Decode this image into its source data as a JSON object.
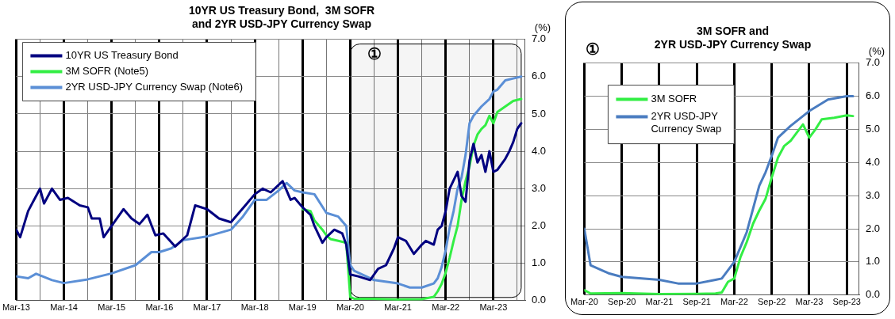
{
  "chart_data": [
    {
      "type": "line",
      "title": "10YR US Treasury Bond,  3M SOFR\nand 2YR USD-JPY Currency Swap",
      "ylabel": "(%)",
      "legend": "top left",
      "grid": true,
      "marker": "none",
      "line_style": "solid",
      "xlim": [
        "2013-03",
        "2023-11"
      ],
      "ylim": [
        0,
        7
      ],
      "xticks": [
        {
          "value": "2013-03",
          "label": "Mar-13"
        },
        {
          "value": "2013-09",
          "label": null
        },
        {
          "value": "2014-03",
          "label": "Mar-14"
        },
        {
          "value": "2014-09",
          "label": null
        },
        {
          "value": "2015-03",
          "label": "Mar-15"
        },
        {
          "value": "2015-09",
          "label": null
        },
        {
          "value": "2016-03",
          "label": "Mar-16"
        },
        {
          "value": "2016-09",
          "label": null
        },
        {
          "value": "2017-03",
          "label": "Mar-17"
        },
        {
          "value": "2017-09",
          "label": null
        },
        {
          "value": "2018-03",
          "label": "Mar-18"
        },
        {
          "value": "2018-09",
          "label": null
        },
        {
          "value": "2019-03",
          "label": "Mar-19"
        },
        {
          "value": "2019-09",
          "label": null
        },
        {
          "value": "2020-03",
          "label": "Mar-20"
        },
        {
          "value": "2020-09",
          "label": null
        },
        {
          "value": "2021-03",
          "label": "Mar-21"
        },
        {
          "value": "2021-09",
          "label": null
        },
        {
          "value": "2022-03",
          "label": "Mar-22"
        },
        {
          "value": "2022-09",
          "label": null
        },
        {
          "value": "2023-03",
          "label": "Mar-23"
        },
        {
          "value": "2023-09",
          "label": null
        }
      ],
      "yticks": [
        {
          "value": 0,
          "label": "0.0"
        },
        {
          "value": 1,
          "label": "1.0"
        },
        {
          "value": 2,
          "label": "2.0"
        },
        {
          "value": 3,
          "label": "3.0"
        },
        {
          "value": 4,
          "label": "4.0"
        },
        {
          "value": 5,
          "label": "5.0"
        },
        {
          "value": 6,
          "label": "6.0"
        },
        {
          "value": 7,
          "label": "7.0"
        }
      ],
      "bands": [
        {
          "axis": "x",
          "from": "2020-03",
          "to": "2023-10",
          "label": "①"
        }
      ],
      "series": [
        {
          "name": "10YR US Treasury Bond",
          "color": "#000080",
          "x": [
            "2013-03",
            "2013-04",
            "2013-06",
            "2013-07",
            "2013-09",
            "2013-10",
            "2013-12",
            "2014-02",
            "2014-04",
            "2014-07",
            "2014-09",
            "2014-10",
            "2014-12",
            "2015-01",
            "2015-03",
            "2015-06",
            "2015-08",
            "2015-10",
            "2015-12",
            "2016-02",
            "2016-04",
            "2016-07",
            "2016-10",
            "2016-12",
            "2017-03",
            "2017-06",
            "2017-09",
            "2017-11",
            "2018-01",
            "2018-03",
            "2018-05",
            "2018-07",
            "2018-10",
            "2018-12",
            "2019-01",
            "2019-03",
            "2019-05",
            "2019-06",
            "2019-08",
            "2019-09",
            "2019-11",
            "2020-01",
            "2020-02",
            "2020-03",
            "2020-05",
            "2020-08",
            "2020-10",
            "2020-12",
            "2021-02",
            "2021-03",
            "2021-05",
            "2021-07",
            "2021-09",
            "2021-10",
            "2021-12",
            "2022-01",
            "2022-02",
            "2022-03",
            "2022-04",
            "2022-06",
            "2022-07",
            "2022-08",
            "2022-09",
            "2022-10",
            "2022-11",
            "2022-12",
            "2023-01",
            "2023-02",
            "2023-03",
            "2023-04",
            "2023-06",
            "2023-07",
            "2023-08",
            "2023-09",
            "2023-10"
          ],
          "values": [
            1.9,
            1.7,
            2.4,
            2.6,
            3.0,
            2.6,
            3.0,
            2.7,
            2.75,
            2.55,
            2.5,
            2.2,
            2.2,
            1.7,
            2.0,
            2.45,
            2.2,
            2.05,
            2.3,
            1.75,
            1.8,
            1.45,
            1.75,
            2.55,
            2.45,
            2.2,
            2.1,
            2.35,
            2.6,
            2.85,
            3.0,
            2.9,
            3.2,
            2.7,
            2.75,
            2.5,
            2.3,
            2.0,
            1.55,
            1.7,
            1.9,
            1.8,
            1.5,
            0.7,
            0.65,
            0.55,
            0.85,
            0.95,
            1.4,
            1.7,
            1.6,
            1.25,
            1.5,
            1.6,
            1.5,
            1.9,
            2.0,
            2.4,
            3.0,
            3.45,
            2.8,
            2.65,
            3.75,
            4.2,
            3.7,
            3.9,
            3.45,
            4.0,
            3.45,
            3.5,
            3.8,
            4.0,
            4.25,
            4.6,
            4.75
          ]
        },
        {
          "name": "3M SOFR (Note5)",
          "color": "#33ee44",
          "x": [
            "2019-03",
            "2019-05",
            "2019-06",
            "2019-08",
            "2019-09",
            "2019-10",
            "2019-12",
            "2020-02",
            "2020-03",
            "2020-04",
            "2020-09",
            "2021-03",
            "2021-09",
            "2021-12",
            "2022-01",
            "2022-02",
            "2022-03",
            "2022-04",
            "2022-05",
            "2022-06",
            "2022-07",
            "2022-08",
            "2022-09",
            "2022-10",
            "2022-11",
            "2022-12",
            "2023-01",
            "2023-02",
            "2023-03",
            "2023-04",
            "2023-06",
            "2023-08",
            "2023-10"
          ],
          "values": [
            2.45,
            2.4,
            2.15,
            1.9,
            1.75,
            1.65,
            1.6,
            1.55,
            0.1,
            0.05,
            0.05,
            0.03,
            0.04,
            0.1,
            0.25,
            0.45,
            0.75,
            1.15,
            1.6,
            2.0,
            2.7,
            3.2,
            3.6,
            4.15,
            4.45,
            4.6,
            4.7,
            4.95,
            4.75,
            5.05,
            5.2,
            5.35,
            5.4
          ]
        },
        {
          "name": "2YR USD-JPY Currency Swap (Note6)",
          "color": "#5b8fd6",
          "x": [
            "2013-03",
            "2013-06",
            "2013-08",
            "2013-12",
            "2014-03",
            "2014-09",
            "2015-03",
            "2015-09",
            "2016-01",
            "2016-03",
            "2016-06",
            "2016-09",
            "2017-03",
            "2017-09",
            "2017-12",
            "2018-03",
            "2018-06",
            "2018-09",
            "2018-11",
            "2019-01",
            "2019-03",
            "2019-06",
            "2019-09",
            "2019-12",
            "2020-02",
            "2020-03",
            "2020-04",
            "2020-07",
            "2020-09",
            "2021-03",
            "2021-06",
            "2021-09",
            "2021-12",
            "2022-01",
            "2022-02",
            "2022-03",
            "2022-04",
            "2022-05",
            "2022-06",
            "2022-07",
            "2022-08",
            "2022-09",
            "2022-10",
            "2022-12",
            "2023-02",
            "2023-03",
            "2023-04",
            "2023-06",
            "2023-08",
            "2023-10"
          ],
          "values": [
            0.65,
            0.6,
            0.72,
            0.55,
            0.47,
            0.57,
            0.73,
            0.95,
            1.3,
            1.3,
            1.4,
            1.62,
            1.72,
            1.9,
            2.25,
            2.7,
            2.7,
            2.95,
            3.15,
            2.95,
            2.9,
            2.85,
            2.35,
            2.25,
            2.0,
            0.95,
            0.8,
            0.65,
            0.55,
            0.46,
            0.35,
            0.35,
            0.46,
            0.6,
            0.9,
            1.35,
            1.95,
            2.4,
            3.0,
            3.3,
            3.9,
            4.75,
            4.95,
            5.2,
            5.4,
            5.6,
            5.65,
            5.9,
            5.95,
            6.0
          ]
        }
      ]
    },
    {
      "type": "line",
      "title": "3M SOFR and\n2YR USD-JPY Currency Swap",
      "ylabel": "(%)",
      "legend": "top left",
      "grid": true,
      "marker": "none",
      "line_style": "solid",
      "annotations": [
        "①"
      ],
      "xlim": [
        "2020-03",
        "2023-11"
      ],
      "ylim": [
        0,
        7
      ],
      "xticks": [
        {
          "value": "2020-03",
          "label": "Mar-20"
        },
        {
          "value": "2020-09",
          "label": "Sep-20"
        },
        {
          "value": "2021-03",
          "label": "Mar-21"
        },
        {
          "value": "2021-09",
          "label": "Sep-21"
        },
        {
          "value": "2022-03",
          "label": "Mar-22"
        },
        {
          "value": "2022-09",
          "label": "Sep-22"
        },
        {
          "value": "2023-03",
          "label": "Mar-23"
        },
        {
          "value": "2023-09",
          "label": "Sep-23"
        }
      ],
      "yticks": [
        {
          "value": 0,
          "label": "0.0"
        },
        {
          "value": 1,
          "label": "1.0"
        },
        {
          "value": 2,
          "label": "2.0"
        },
        {
          "value": 3,
          "label": "3.0"
        },
        {
          "value": 4,
          "label": "4.0"
        },
        {
          "value": 5,
          "label": "5.0"
        },
        {
          "value": 6,
          "label": "6.0"
        },
        {
          "value": 7,
          "label": "7.0"
        }
      ],
      "series": [
        {
          "name": "3M SOFR",
          "color": "#33ee44",
          "x": [
            "2020-03",
            "2020-04",
            "2020-09",
            "2021-03",
            "2021-09",
            "2021-12",
            "2022-01",
            "2022-02",
            "2022-03",
            "2022-04",
            "2022-05",
            "2022-06",
            "2022-07",
            "2022-08",
            "2022-09",
            "2022-10",
            "2022-11",
            "2022-12",
            "2023-02",
            "2023-03",
            "2023-04",
            "2023-05",
            "2023-07",
            "2023-09",
            "2023-10"
          ],
          "values": [
            0.15,
            0.05,
            0.06,
            0.03,
            0.04,
            0.05,
            0.08,
            0.4,
            0.5,
            1.15,
            1.6,
            2.15,
            2.55,
            2.9,
            3.55,
            4.15,
            4.5,
            4.65,
            5.15,
            4.75,
            5.0,
            5.3,
            5.35,
            5.42,
            5.4
          ]
        },
        {
          "name": "2YR USD-JPY Currency Swap",
          "color": "#4a7cc0",
          "x": [
            "2020-03",
            "2020-04",
            "2020-07",
            "2020-09",
            "2021-03",
            "2021-06",
            "2021-09",
            "2021-12",
            "2022-01",
            "2022-03",
            "2022-05",
            "2022-07",
            "2022-08",
            "2022-09",
            "2022-10",
            "2022-12",
            "2023-03",
            "2023-06",
            "2023-09",
            "2023-10"
          ],
          "values": [
            2.0,
            0.9,
            0.65,
            0.55,
            0.46,
            0.35,
            0.35,
            0.46,
            0.5,
            1.0,
            1.9,
            3.3,
            3.7,
            4.2,
            4.75,
            5.1,
            5.55,
            5.9,
            6.0,
            6.0
          ]
        }
      ]
    }
  ]
}
